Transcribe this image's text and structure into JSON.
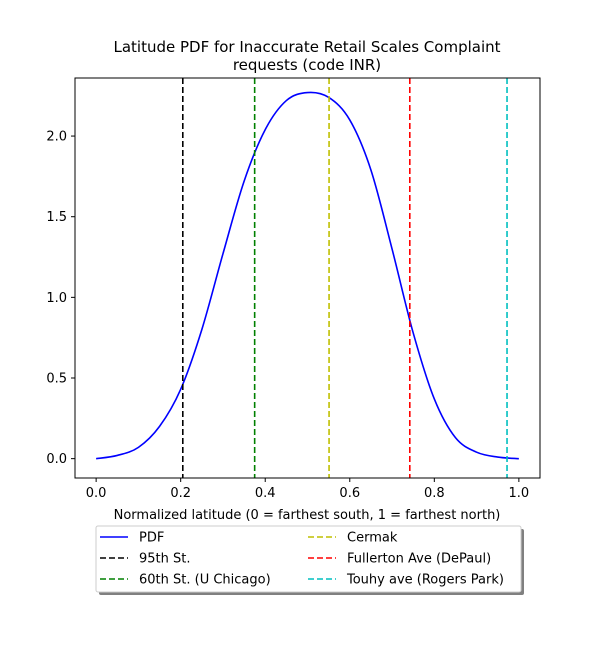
{
  "chart_data": {
    "type": "line",
    "title_lines": [
      "Latitude PDF for Inaccurate Retail Scales Complaint",
      "requests (code INR)"
    ],
    "xlabel": "Normalized latitude (0 = farthest south, 1 = farthest north)",
    "ylabel": "",
    "xlim": [
      -0.05,
      1.05
    ],
    "ylim": [
      -0.12,
      2.36
    ],
    "x_ticks": [
      0.0,
      0.2,
      0.4,
      0.6,
      0.8,
      1.0
    ],
    "x_tick_labels": [
      "0.0",
      "0.2",
      "0.4",
      "0.6",
      "0.8",
      "1.0"
    ],
    "y_ticks": [
      0.0,
      0.5,
      1.0,
      1.5,
      2.0
    ],
    "y_tick_labels": [
      "0.0",
      "0.5",
      "1.0",
      "1.5",
      "2.0"
    ],
    "grid": false,
    "legend_placement": "bottom, below axes, two columns",
    "pdf_series": {
      "name": "PDF",
      "color": "#0000ff",
      "x": [
        0.0,
        0.05,
        0.1,
        0.15,
        0.2,
        0.25,
        0.3,
        0.35,
        0.4,
        0.45,
        0.5,
        0.55,
        0.6,
        0.65,
        0.7,
        0.75,
        0.8,
        0.85,
        0.9,
        0.95,
        1.0
      ],
      "y": [
        0.0,
        0.02,
        0.07,
        0.2,
        0.43,
        0.8,
        1.27,
        1.72,
        2.04,
        2.22,
        2.27,
        2.24,
        2.1,
        1.79,
        1.3,
        0.78,
        0.37,
        0.13,
        0.04,
        0.01,
        0.0
      ]
    },
    "reference_lines": [
      {
        "name": "95th St.",
        "x": 0.205,
        "color": "#000000"
      },
      {
        "name": "60th St. (U Chicago)",
        "x": 0.375,
        "color": "#008000"
      },
      {
        "name": "Cermak",
        "x": 0.551,
        "color": "#bfbf00"
      },
      {
        "name": "Fullerton Ave (DePaul)",
        "x": 0.742,
        "color": "#ff0000"
      },
      {
        "name": "Touhy ave (Rogers Park)",
        "x": 0.972,
        "color": "#00bfbf"
      }
    ],
    "legend_entries": [
      {
        "label": "PDF",
        "color": "#0000ff",
        "style": "solid"
      },
      {
        "label": "95th St.",
        "color": "#000000",
        "style": "dashed"
      },
      {
        "label": "60th St. (U Chicago)",
        "color": "#008000",
        "style": "dashed"
      },
      {
        "label": "Cermak",
        "color": "#bfbf00",
        "style": "dashed"
      },
      {
        "label": "Fullerton Ave (DePaul)",
        "color": "#ff0000",
        "style": "dashed"
      },
      {
        "label": "Touhy ave (Rogers Park)",
        "color": "#00bfbf",
        "style": "dashed"
      }
    ]
  }
}
